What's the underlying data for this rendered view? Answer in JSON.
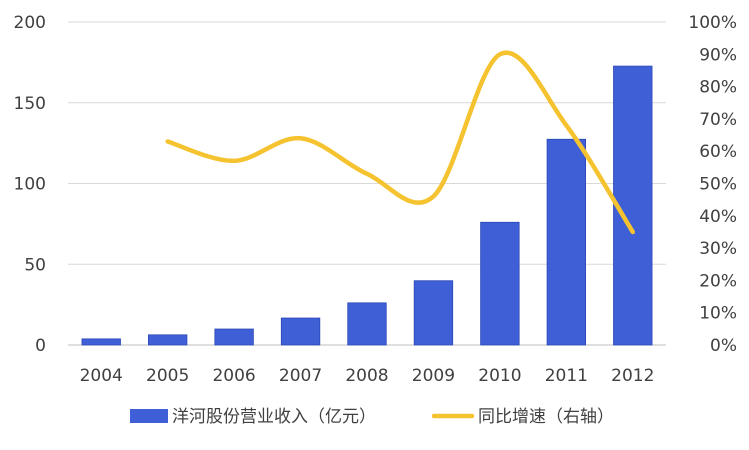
{
  "chart_data": {
    "type": "bar",
    "categories": [
      "2004",
      "2005",
      "2006",
      "2007",
      "2008",
      "2009",
      "2010",
      "2011",
      "2012"
    ],
    "series": [
      {
        "name": "洋河股份营业收入（亿元）",
        "type": "bar",
        "axis": "left",
        "values": [
          3.8,
          6.3,
          9.9,
          16.7,
          26.1,
          39.8,
          76.0,
          127.4,
          172.7
        ],
        "color": "#3f5fd6"
      },
      {
        "name": "同比增速（右轴）",
        "type": "line",
        "axis": "right",
        "values": [
          null,
          0.63,
          0.57,
          0.64,
          0.53,
          0.46,
          0.9,
          0.68,
          0.35
        ],
        "color": "#f5c230"
      }
    ],
    "y_left": {
      "ylim": [
        0,
        200
      ],
      "ticks": [
        "0",
        "50",
        "100",
        "150",
        "200"
      ]
    },
    "y_right": {
      "ylim": [
        0,
        1.0
      ],
      "ticks": [
        "0%",
        "10%",
        "20%",
        "30%",
        "40%",
        "50%",
        "60%",
        "70%",
        "80%",
        "90%",
        "100%"
      ]
    },
    "grid": true,
    "legend": "bottom"
  }
}
